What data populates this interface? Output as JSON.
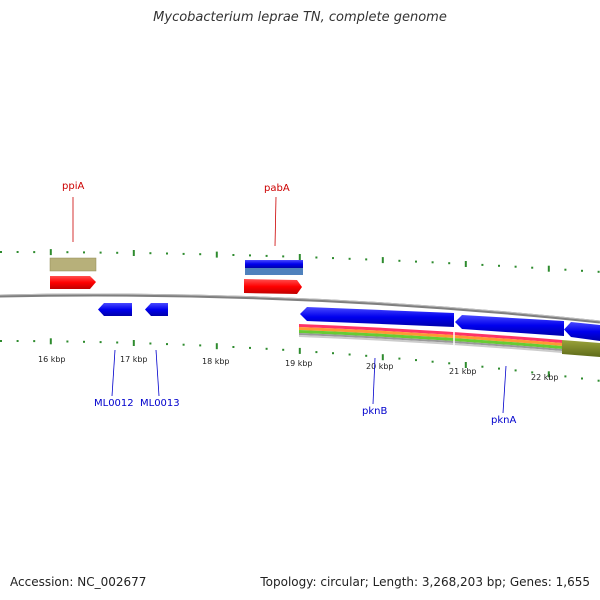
{
  "title": "Mycobacterium leprae TN, complete genome",
  "footer": {
    "accession": "Accession: NC_002677",
    "summary": "Topology: circular; Length: 3,268,203 bp; Genes: 1,655"
  },
  "scale_labels": [
    "16 kbp",
    "17 kbp",
    "18 kbp",
    "19 kbp",
    "20 kbp",
    "21 kbp",
    "22 kbp"
  ],
  "genes": {
    "forward": [
      {
        "name": "ppiA",
        "color": "#cc0000"
      },
      {
        "name": "pabA",
        "color": "#cc0000"
      }
    ],
    "reverse": [
      {
        "name": "ML0012",
        "color": "#0000cc"
      },
      {
        "name": "ML0013",
        "color": "#0000cc"
      },
      {
        "name": "pknB",
        "color": "#0000cc"
      },
      {
        "name": "pknA",
        "color": "#0000cc"
      }
    ]
  },
  "colors": {
    "cds": "#0000ee",
    "gene": "#ff0000",
    "misc": "#b7b07a",
    "tick": "#2e8b2e",
    "backbone": "#888888"
  }
}
